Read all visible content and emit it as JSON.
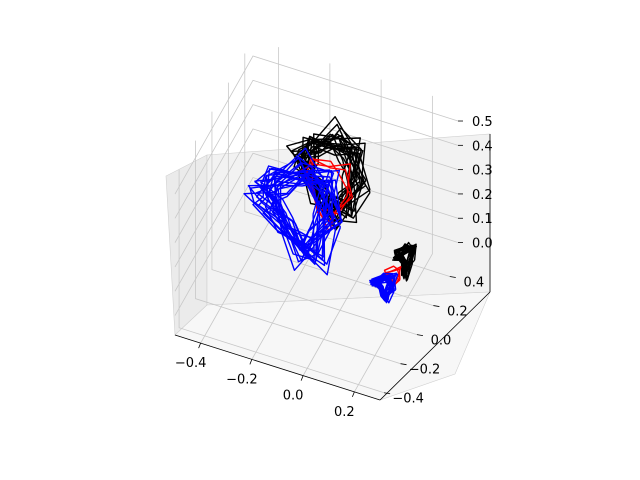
{
  "chart_data": {
    "type": "line",
    "projection": "3d",
    "title": "",
    "xlabel": "",
    "ylabel": "",
    "zlabel": "",
    "grid": true,
    "xlim": [
      -0.5,
      0.3
    ],
    "ylim": [
      -0.45,
      0.5
    ],
    "zlim": [
      -0.08,
      0.57
    ],
    "x_ticks": [
      -0.4,
      -0.2,
      0.0,
      0.2
    ],
    "x_tick_labels": [
      "−0.4",
      "−0.2",
      "0.0",
      "0.2"
    ],
    "y_ticks": [
      -0.4,
      -0.2,
      0.0,
      0.2,
      0.4
    ],
    "y_tick_labels": [
      "−0.4",
      "−0.2",
      "0.0",
      "0.2",
      "0.4"
    ],
    "z_ticks": [
      0.0,
      0.1,
      0.2,
      0.3,
      0.4,
      0.5
    ],
    "z_tick_labels": [
      "0.0",
      "0.1",
      "0.2",
      "0.3",
      "0.4",
      "0.5"
    ],
    "series": [
      {
        "color": "#000000",
        "label_visible": false,
        "loops": 22,
        "groups": [
          {
            "cx": -0.08,
            "cy": 0.12,
            "cz": 0.38,
            "rx": 0.13,
            "ry": 0.05,
            "rz": 0.18,
            "jitter": 0.025
          },
          {
            "cx": 0.2,
            "cy": 0.16,
            "cz": 0.1,
            "rx": 0.03,
            "ry": 0.05,
            "rz": 0.05,
            "jitter": 0.01
          }
        ]
      },
      {
        "color": "#ff0000",
        "label_visible": false,
        "loops": 3,
        "groups": [
          {
            "cx": -0.08,
            "cy": 0.1,
            "cz": 0.33,
            "rx": 0.09,
            "ry": 0.04,
            "rz": 0.14,
            "jitter": 0.01
          },
          {
            "cx": 0.17,
            "cy": 0.1,
            "cz": 0.06,
            "rx": 0.03,
            "ry": 0.04,
            "rz": 0.04,
            "jitter": 0.005
          }
        ]
      },
      {
        "color": "#0000ff",
        "label_visible": false,
        "loops": 24,
        "groups": [
          {
            "cx": -0.17,
            "cy": 0.0,
            "cz": 0.28,
            "rx": 0.15,
            "ry": 0.08,
            "rz": 0.18,
            "jitter": 0.03
          },
          {
            "cx": 0.15,
            "cy": 0.05,
            "cz": 0.04,
            "rx": 0.04,
            "ry": 0.04,
            "rz": 0.04,
            "jitter": 0.008
          }
        ]
      }
    ]
  }
}
